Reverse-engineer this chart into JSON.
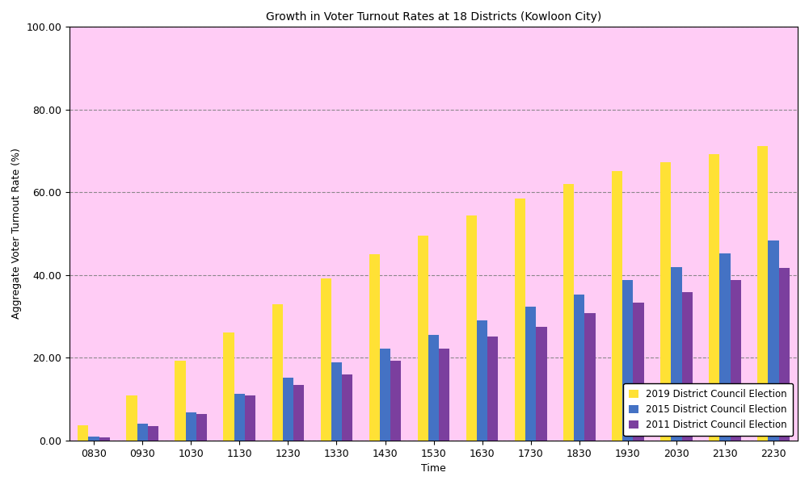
{
  "title": "Growth in Voter Turnout Rates at 18 Districts (Kowloon City)",
  "xlabel": "Time",
  "ylabel": "Aggregate Voter Turnout Rate (%)",
  "categories": [
    "0830",
    "0930",
    "1030",
    "1130",
    "1230",
    "1330",
    "1430",
    "1530",
    "1630",
    "1730",
    "1830",
    "1930",
    "2030",
    "2130",
    "2230"
  ],
  "series": {
    "2019 District Council Election": [
      3.7,
      10.9,
      19.3,
      26.2,
      33.0,
      39.1,
      45.0,
      49.5,
      54.3,
      58.5,
      62.0,
      65.1,
      67.2,
      69.3,
      71.1
    ],
    "2015 District Council Election": [
      0.9,
      4.0,
      6.7,
      11.2,
      15.1,
      18.9,
      22.3,
      25.6,
      29.1,
      32.4,
      35.3,
      38.7,
      41.9,
      45.2,
      48.4
    ],
    "2011 District Council Election": [
      0.7,
      3.4,
      6.4,
      10.8,
      13.4,
      15.9,
      19.2,
      22.2,
      25.2,
      27.5,
      30.8,
      33.3,
      35.9,
      38.8,
      41.8
    ]
  },
  "colors": {
    "2019 District Council Election": "#FFE135",
    "2015 District Council Election": "#4472C4",
    "2011 District Council Election": "#7B3F9E"
  },
  "ylim": [
    0,
    100
  ],
  "yticks": [
    0.0,
    20.0,
    40.0,
    60.0,
    80.0,
    100.0
  ],
  "figure_bg": "#FFFFFF",
  "plot_bg": "#FFCCF5",
  "grid_color": "#808080",
  "grid_style": "--",
  "bar_width": 0.22,
  "legend_position": "lower right",
  "title_fontsize": 10,
  "axis_fontsize": 9,
  "label_fontsize": 9
}
